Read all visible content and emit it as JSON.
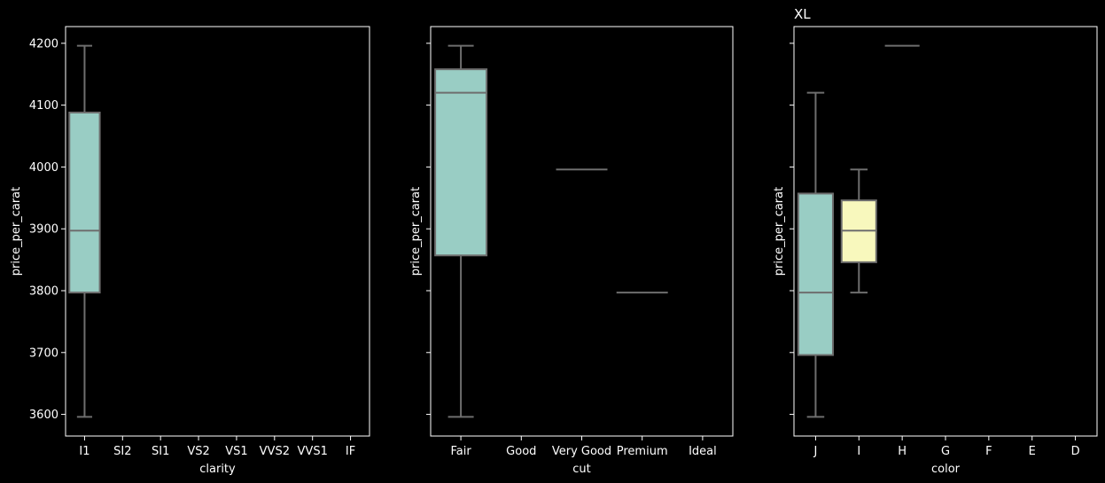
{
  "chart_data": [
    {
      "type": "box",
      "title": "",
      "xlabel": "clarity",
      "ylabel": "price_per_carat",
      "ylim": [
        3565,
        4227
      ],
      "yticks": [
        3600,
        3700,
        3800,
        3900,
        4000,
        4100,
        4200
      ],
      "categories": [
        "I1",
        "SI2",
        "SI1",
        "VS2",
        "VS1",
        "VVS2",
        "VVS1",
        "IF"
      ],
      "boxes": [
        {
          "category": "I1",
          "whisker_low": 3596,
          "q1": 3797,
          "median": 3897,
          "q3": 4088,
          "whisker_high": 4196,
          "color": "#99cdc4"
        }
      ]
    },
    {
      "type": "box",
      "title": "",
      "xlabel": "cut",
      "ylabel": "price_per_carat",
      "ylim": [
        3565,
        4227
      ],
      "yticks": [
        3600,
        3700,
        3800,
        3900,
        4000,
        4100,
        4200
      ],
      "categories": [
        "Fair",
        "Good",
        "Very Good",
        "Premium",
        "Ideal"
      ],
      "boxes": [
        {
          "category": "Fair",
          "whisker_low": 3596,
          "q1": 3857,
          "median": 4120,
          "q3": 4158,
          "whisker_high": 4196,
          "color": "#99cdc4"
        },
        {
          "category": "Very Good",
          "whisker_low": 3996,
          "q1": 3996,
          "median": 3996,
          "q3": 3996,
          "whisker_high": 3996,
          "color": "#99cdc4"
        },
        {
          "category": "Premium",
          "whisker_low": 3797,
          "q1": 3797,
          "median": 3797,
          "q3": 3797,
          "whisker_high": 3797,
          "color": "#99cdc4"
        }
      ]
    },
    {
      "type": "box",
      "title": "XL",
      "xlabel": "color",
      "ylabel": "price_per_carat",
      "ylim": [
        3565,
        4227
      ],
      "yticks": [
        3600,
        3700,
        3800,
        3900,
        4000,
        4100,
        4200
      ],
      "categories": [
        "J",
        "I",
        "H",
        "G",
        "F",
        "E",
        "D"
      ],
      "boxes": [
        {
          "category": "J",
          "whisker_low": 3596,
          "q1": 3696,
          "median": 3797,
          "q3": 3957,
          "whisker_high": 4120,
          "color": "#99cdc4"
        },
        {
          "category": "I",
          "whisker_low": 3797,
          "q1": 3846,
          "median": 3897,
          "q3": 3946,
          "whisker_high": 3996,
          "color": "#f8f8bd"
        },
        {
          "category": "H",
          "whisker_low": 4196,
          "q1": 4196,
          "median": 4196,
          "q3": 4196,
          "whisker_high": 4196,
          "color": "#99cdc4"
        }
      ]
    }
  ],
  "colors": {
    "background": "#000000",
    "axes": "#ffffff",
    "whisker": "#6e6e6e",
    "box_teal": "#99cdc4",
    "box_yellow": "#f8f8bd"
  }
}
